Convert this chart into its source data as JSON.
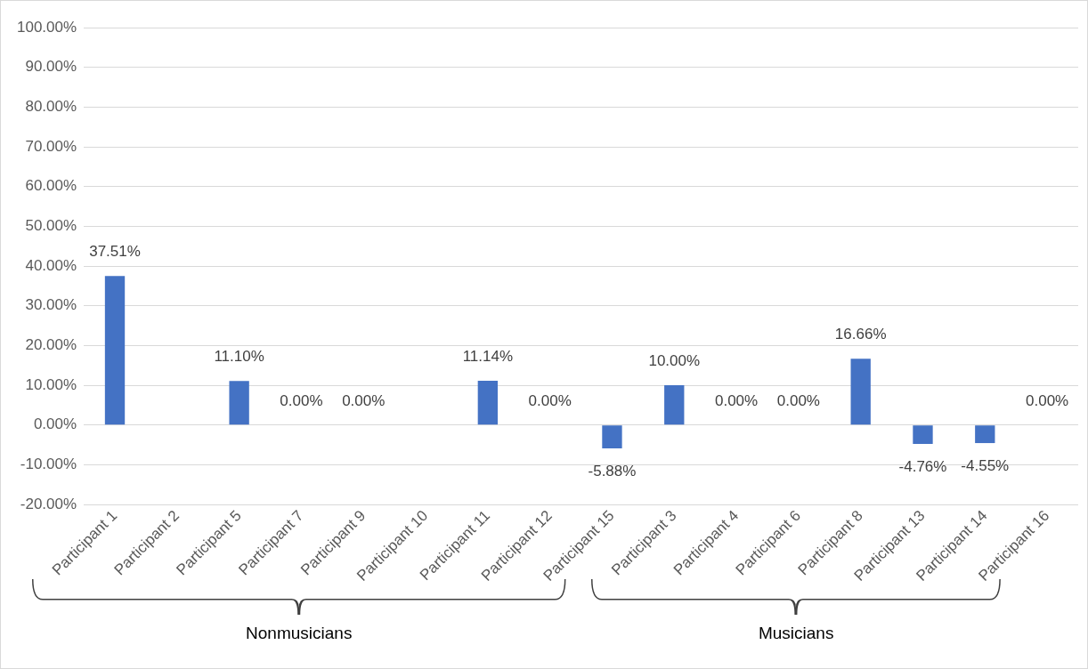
{
  "chart_data": {
    "type": "bar",
    "categories": [
      "Participant 1",
      "Participant 2",
      "Participant 5",
      "Participant 7",
      "Participant 9",
      "Participant 10",
      "Participant 11",
      "Participant 12",
      "Participant 15",
      "Participant 3",
      "Participant 4",
      "Participant 6",
      "Participant 8",
      "Participant 13",
      "Participant 14",
      "Participant 16"
    ],
    "values": [
      37.51,
      null,
      11.1,
      0,
      0,
      null,
      11.14,
      0,
      -5.88,
      10,
      0,
      0,
      16.66,
      -4.76,
      -4.55,
      0
    ],
    "value_labels": [
      "37.51%",
      null,
      "11.10%",
      "0.00%",
      "0.00%",
      null,
      "11.14%",
      "0.00%",
      "-5.88%",
      "10.00%",
      "0.00%",
      "0.00%",
      "16.66%",
      "-4.76%",
      "-4.55%",
      "0.00%"
    ],
    "color": "#4472c4",
    "ylim": [
      -20,
      100
    ],
    "yticks": [
      {
        "value": -20,
        "label": "-20.00%"
      },
      {
        "value": -10,
        "label": "-10.00%"
      },
      {
        "value": 0,
        "label": "0.00%"
      },
      {
        "value": 10,
        "label": "10.00%"
      },
      {
        "value": 20,
        "label": "20.00%"
      },
      {
        "value": 30,
        "label": "30.00%"
      },
      {
        "value": 40,
        "label": "40.00%"
      },
      {
        "value": 50,
        "label": "50.00%"
      },
      {
        "value": 60,
        "label": "60.00%"
      },
      {
        "value": 70,
        "label": "70.00%"
      },
      {
        "value": 80,
        "label": "80.00%"
      },
      {
        "value": 90,
        "label": "90.00%"
      },
      {
        "value": 100,
        "label": "100.00%"
      }
    ],
    "grid": "y",
    "legend": false,
    "annotations": [
      "Nonmusicians",
      "Musicians"
    ]
  }
}
